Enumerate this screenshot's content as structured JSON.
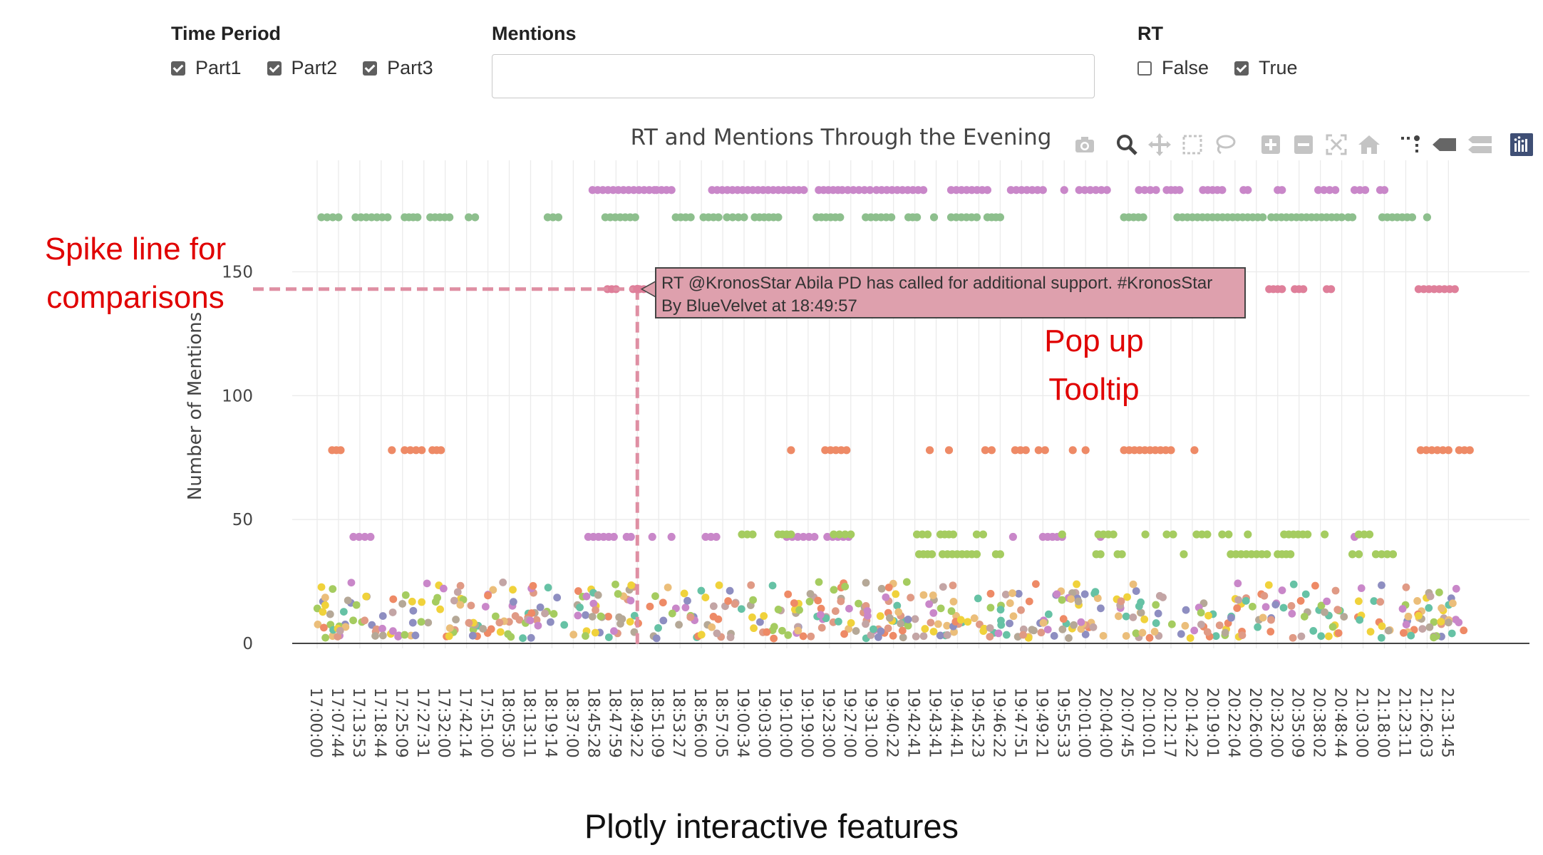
{
  "controls": {
    "time_period": {
      "label": "Time Period",
      "options": [
        {
          "label": "Part1",
          "checked": true
        },
        {
          "label": "Part2",
          "checked": true
        },
        {
          "label": "Part3",
          "checked": true
        }
      ]
    },
    "mentions": {
      "label": "Mentions",
      "value": "",
      "placeholder": ""
    },
    "rt": {
      "label": "RT",
      "options": [
        {
          "label": "False",
          "checked": false
        },
        {
          "label": "True",
          "checked": true
        }
      ]
    }
  },
  "toolbar": {
    "icons": [
      "camera-icon",
      "zoom-icon",
      "pan-icon",
      "box-select-icon",
      "lasso-select-icon",
      "zoom-in-icon",
      "zoom-out-icon",
      "autoscale-icon",
      "reset-axes-icon",
      "spike-lines-icon",
      "hover-closest-icon",
      "hover-compare-icon",
      "plotly-logo-icon"
    ]
  },
  "chart_data": {
    "type": "scatter",
    "title": "RT and Mentions Through the Evening",
    "ylabel": "Number of Mentions",
    "xlabel": "",
    "ylim": [
      -2,
      195
    ],
    "yticks": [
      0,
      50,
      100,
      150
    ],
    "x_categories": [
      "17:00:00",
      "17:07:44",
      "17:13:53",
      "17:18:44",
      "17:25:09",
      "17:27:31",
      "17:32:00",
      "17:42:14",
      "17:51:00",
      "18:05:30",
      "18:13:11",
      "18:19:14",
      "18:37:00",
      "18:45:28",
      "18:47:59",
      "18:49:22",
      "18:51:09",
      "18:53:27",
      "18:56:00",
      "18:57:05",
      "19:00:34",
      "19:03:00",
      "19:10:00",
      "19:19:00",
      "19:23:00",
      "19:27:00",
      "19:31:00",
      "19:40:22",
      "19:42:41",
      "19:43:41",
      "19:44:41",
      "19:45:23",
      "19:46:22",
      "19:47:51",
      "19:49:21",
      "19:55:33",
      "20:01:00",
      "20:04:00",
      "20:07:45",
      "20:10:01",
      "20:12:17",
      "20:14:22",
      "20:19:01",
      "20:22:04",
      "20:26:00",
      "20:32:00",
      "20:35:09",
      "20:38:02",
      "20:48:44",
      "21:03:00",
      "21:18:00",
      "21:23:11",
      "21:26:03",
      "21:31:45"
    ],
    "bands": [
      {
        "y": 183,
        "color": "#c987c9",
        "ranges": [
          [
            12.9,
            15.8
          ],
          [
            15.9,
            16.6
          ],
          [
            18.5,
            22.8
          ],
          [
            23.5,
            24.4
          ],
          [
            24.6,
            25.9
          ],
          [
            26.2,
            28.4
          ],
          [
            29.7,
            31.4
          ],
          [
            32.5,
            34.0
          ],
          [
            35.0,
            35.0
          ],
          [
            35.7,
            37.0
          ],
          [
            38.5,
            39.3
          ],
          [
            39.8,
            40.4
          ],
          [
            41.5,
            42.4
          ],
          [
            43.4,
            43.6
          ],
          [
            45.0,
            45.2
          ],
          [
            46.9,
            47.7
          ],
          [
            48.6,
            49.1
          ],
          [
            49.8,
            50.0
          ]
        ]
      },
      {
        "y": 172,
        "color": "#8dbf8d",
        "ranges": [
          [
            0.2,
            1.0
          ],
          [
            1.8,
            3.3
          ],
          [
            4.1,
            4.7
          ],
          [
            5.3,
            6.2
          ],
          [
            7.1,
            7.4
          ],
          [
            10.8,
            11.3
          ],
          [
            13.5,
            14.9
          ],
          [
            16.8,
            17.5
          ],
          [
            18.1,
            18.8
          ],
          [
            19.2,
            20.0
          ],
          [
            20.5,
            21.6
          ],
          [
            23.4,
            24.5
          ],
          [
            25.7,
            26.9
          ],
          [
            27.7,
            28.1
          ],
          [
            28.9,
            29.0
          ],
          [
            29.7,
            30.9
          ],
          [
            31.4,
            32.0
          ],
          [
            37.8,
            38.7
          ],
          [
            40.3,
            44.3
          ],
          [
            44.7,
            48.0
          ],
          [
            48.3,
            48.5
          ],
          [
            49.9,
            51.3
          ],
          [
            52.0,
            52.0
          ]
        ]
      },
      {
        "y": 143,
        "color": "#df7f9a",
        "ranges": [
          [
            13.6,
            14.0
          ],
          [
            14.8,
            15.1
          ],
          [
            15.3,
            15.4
          ],
          [
            25.8,
            26.2
          ],
          [
            27.2,
            27.6
          ],
          [
            44.6,
            45.2
          ],
          [
            45.8,
            46.2
          ],
          [
            47.3,
            47.5
          ],
          [
            51.6,
            53.3
          ]
        ]
      },
      {
        "y": 78,
        "color": "#ee8a66",
        "ranges": [
          [
            0.7,
            1.1
          ],
          [
            3.5,
            3.5
          ],
          [
            4.1,
            4.9
          ],
          [
            5.4,
            5.8
          ],
          [
            22.2,
            22.2
          ],
          [
            23.8,
            24.8
          ],
          [
            28.7,
            28.7
          ],
          [
            29.6,
            29.6
          ],
          [
            31.3,
            31.6
          ],
          [
            32.7,
            33.2
          ],
          [
            33.8,
            34.1
          ],
          [
            35.4,
            35.4
          ],
          [
            36.0,
            36.0
          ],
          [
            37.8,
            40.0
          ],
          [
            41.1,
            41.1
          ],
          [
            51.7,
            53.0
          ],
          [
            53.5,
            54.0
          ]
        ]
      },
      {
        "y": 43,
        "color": "#c987c9",
        "ranges": [
          [
            1.7,
            2.5
          ],
          [
            12.7,
            13.9
          ],
          [
            14.5,
            14.7
          ],
          [
            15.7,
            15.7
          ],
          [
            16.6,
            16.6
          ],
          [
            18.2,
            18.7
          ],
          [
            22.0,
            23.3
          ],
          [
            23.9,
            24.9
          ],
          [
            32.6,
            32.6
          ],
          [
            34.0,
            34.9
          ],
          [
            36.7,
            36.7
          ],
          [
            48.6,
            48.6
          ]
        ]
      },
      {
        "y": 44,
        "color": "#a5cc60",
        "ranges": [
          [
            19.9,
            20.4
          ],
          [
            21.6,
            22.2
          ],
          [
            24.2,
            25.0
          ],
          [
            28.1,
            28.6
          ],
          [
            29.2,
            29.8
          ],
          [
            30.9,
            31.2
          ],
          [
            34.9,
            34.9
          ],
          [
            36.6,
            37.3
          ],
          [
            38.8,
            38.8
          ],
          [
            39.8,
            40.1
          ],
          [
            41.2,
            41.7
          ],
          [
            42.4,
            42.7
          ],
          [
            43.6,
            43.6
          ],
          [
            45.3,
            46.4
          ],
          [
            47.2,
            47.2
          ],
          [
            48.8,
            49.3
          ]
        ]
      },
      {
        "y": 36,
        "color": "#a5cc60",
        "ranges": [
          [
            28.2,
            28.8
          ],
          [
            29.3,
            30.9
          ],
          [
            31.8,
            32.0
          ],
          [
            36.5,
            36.7
          ],
          [
            37.5,
            37.7
          ],
          [
            40.6,
            40.6
          ],
          [
            42.8,
            44.5
          ],
          [
            45.0,
            45.6
          ],
          [
            48.5,
            48.8
          ],
          [
            49.6,
            50.4
          ]
        ]
      }
    ],
    "noise_colors": [
      "#a5cc60",
      "#b5a897",
      "#f0d23b",
      "#ebbe7a",
      "#ee8a66",
      "#c987c9",
      "#8e8ec1",
      "#66c2a5",
      "#c3a5a5",
      "#e09a85"
    ],
    "spike": {
      "x_category": "18:49:22",
      "y": 143
    },
    "tooltip": {
      "line1": "RT @KronosStar Abila PD has called for additional support. #KronosStar",
      "line2": "By  BlueVelvet  at  18:49:57",
      "color": "#dea0ad"
    }
  },
  "annotations": {
    "spike_label_line1": "Spike line for",
    "spike_label_line2": "comparisons",
    "tooltip_label_line1": "Pop up",
    "tooltip_label_line2": "Tooltip",
    "caption": "Plotly interactive features"
  }
}
